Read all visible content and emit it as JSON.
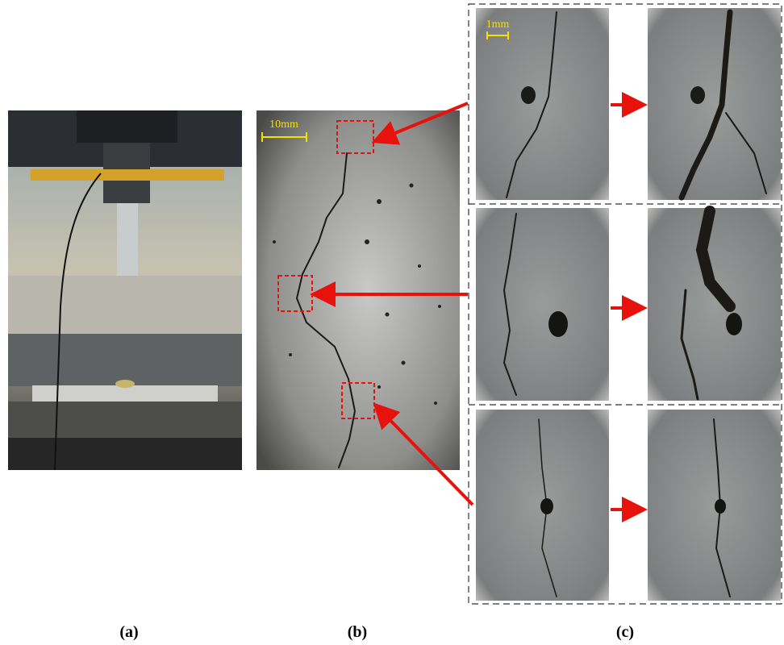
{
  "panels": {
    "a": {
      "label": "(a)"
    },
    "b": {
      "label": "(b)",
      "scale_bar": "10mm"
    },
    "c": {
      "label": "(c)",
      "scale_bar": "1mm"
    }
  }
}
